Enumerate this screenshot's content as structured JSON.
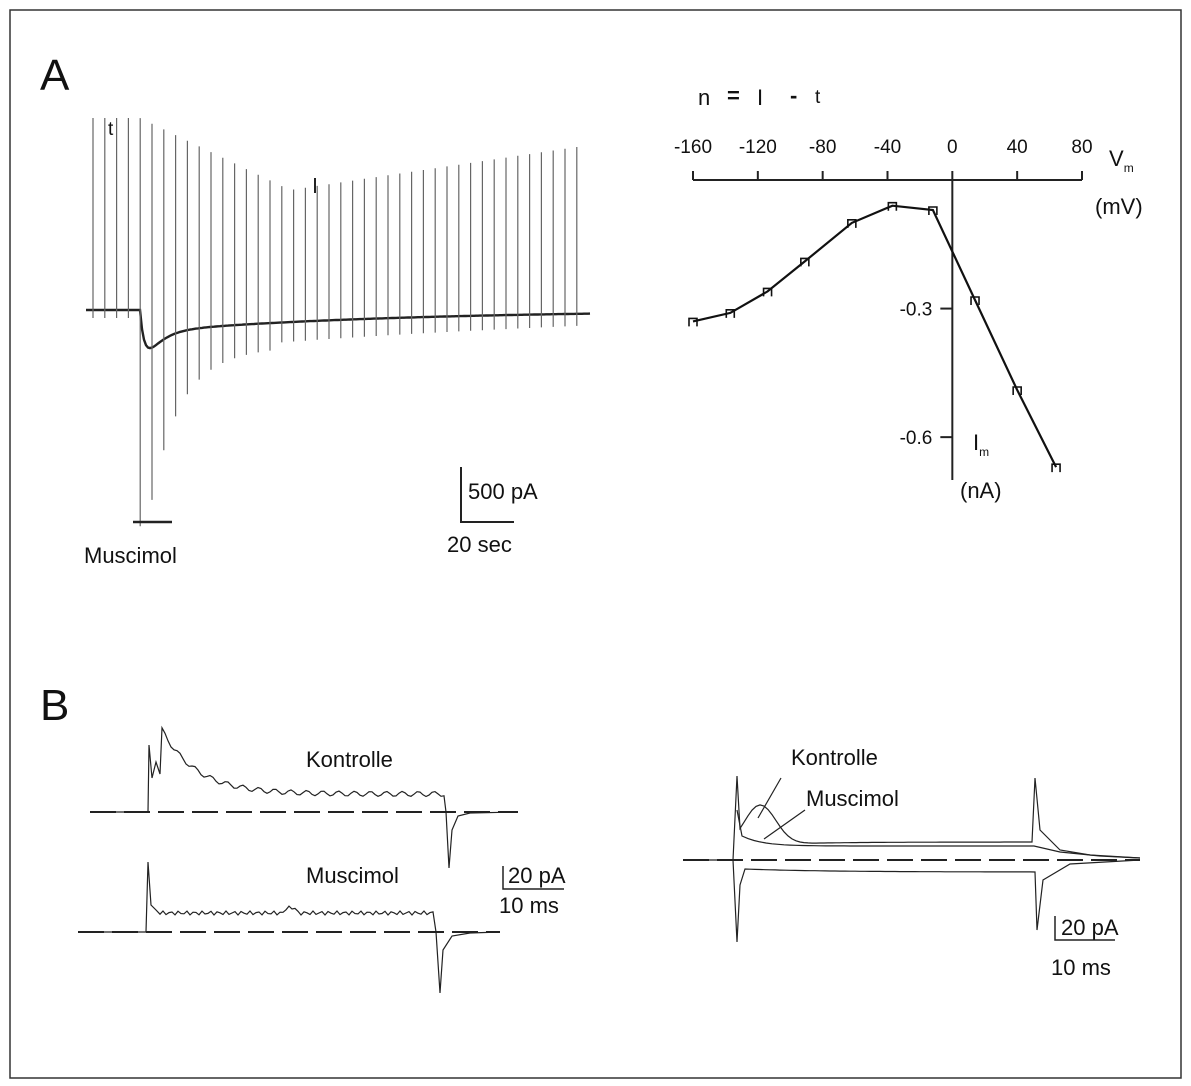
{
  "panels": {
    "a_letter": "A",
    "b_letter": "B"
  },
  "panel_a_trace": {
    "drug_label": "Muscimol",
    "scale_current": "500 pA",
    "scale_time": "20 sec"
  },
  "iv_legend": {
    "text1": "n",
    "text2": "=",
    "text3": "I",
    "text4": "-",
    "text5": "t"
  },
  "panel_b": {
    "left_control_label": "Kontrolle",
    "left_drug_label": "Muscimol",
    "left_scale_current": "20 pA",
    "left_scale_time": "10 ms",
    "right_control_label": "Kontrolle",
    "right_drug_label": "Muscimol",
    "right_scale_current": "20 pA",
    "right_scale_time": "10 ms"
  },
  "chart_data": {
    "type": "line",
    "xlabel": "V",
    "xlabel_sub": "m",
    "xunit": "(mV)",
    "ylabel": "I",
    "ylabel_sub": "m",
    "yunit": "(nA)",
    "xlim": [
      -160,
      80
    ],
    "ylim": [
      -0.7,
      0
    ],
    "xticks": [
      -160,
      -120,
      -80,
      -40,
      0,
      40,
      80
    ],
    "yticks": [
      -0.3,
      -0.6
    ],
    "tick_labels_x": [
      "-160",
      "-120",
      "-80",
      "-40",
      "0",
      "40",
      "80"
    ],
    "tick_labels_y": [
      "-0.3",
      "-0.6"
    ],
    "series": [
      {
        "x": [
          -160,
          -137,
          -114,
          -91,
          -62,
          -37,
          -12,
          14,
          40,
          64
        ],
        "y": [
          -0.33,
          -0.31,
          -0.26,
          -0.19,
          -0.1,
          -0.06,
          -0.07,
          -0.28,
          -0.49,
          -0.67
        ]
      }
    ]
  }
}
